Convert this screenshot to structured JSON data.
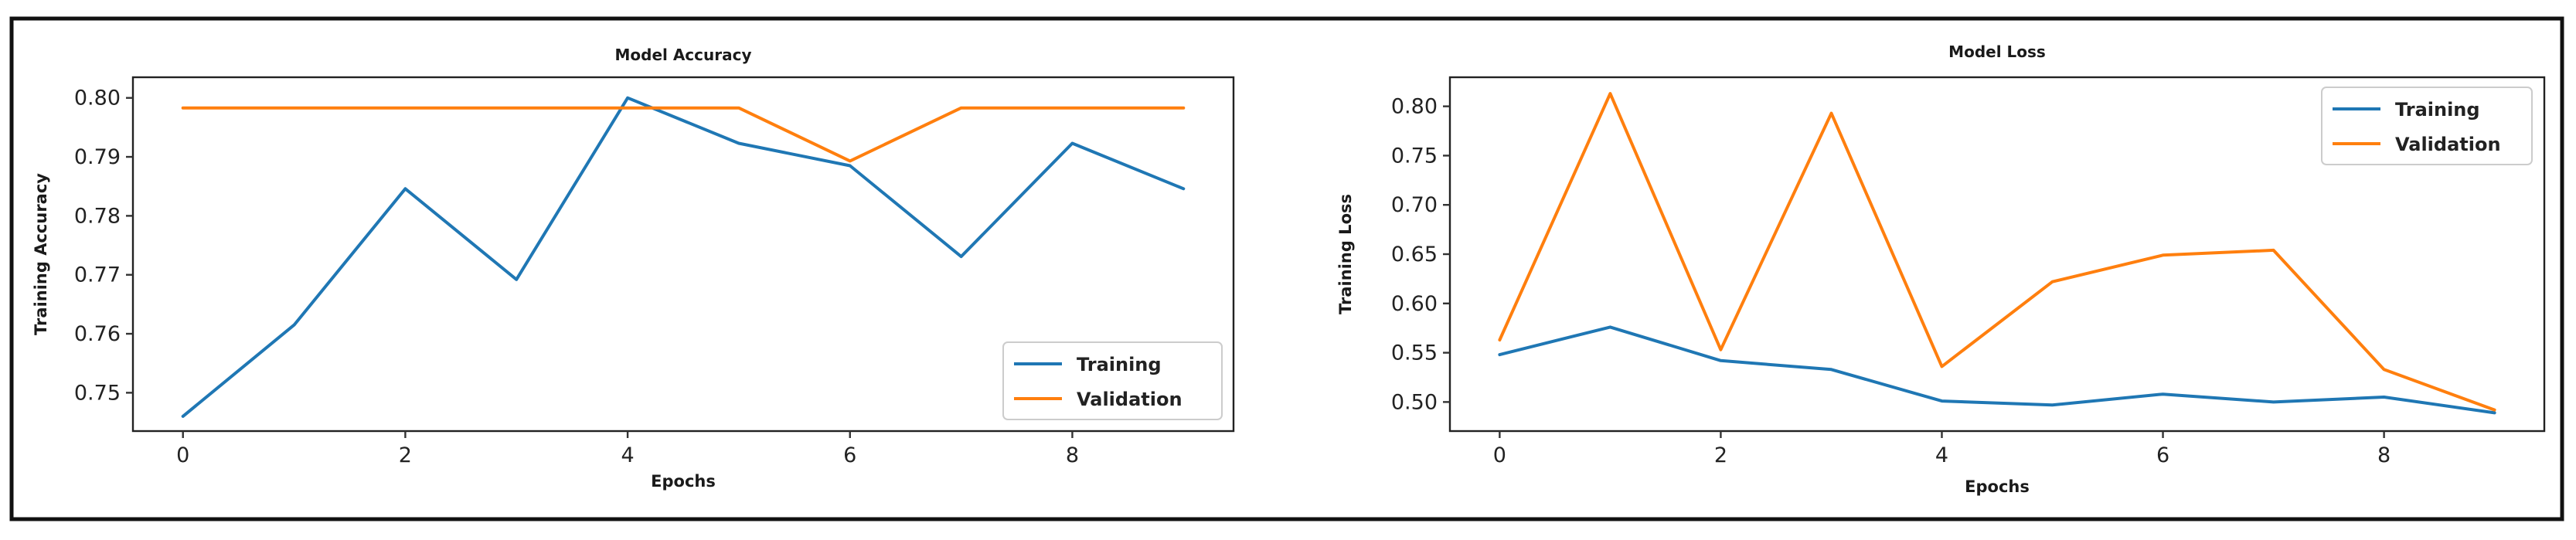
{
  "chart_data": [
    {
      "type": "line",
      "title": "Model Accuracy",
      "xlabel": "Epochs",
      "ylabel": "Training Accuracy",
      "x": [
        0,
        1,
        2,
        3,
        4,
        5,
        6,
        7,
        8,
        9
      ],
      "xticks": [
        0,
        2,
        4,
        6,
        8
      ],
      "xlim": [
        -0.45,
        9.45
      ],
      "yticks": [
        "0.75",
        "0.76",
        "0.77",
        "0.78",
        "0.79",
        "0.80"
      ],
      "ytick_values": [
        0.75,
        0.76,
        0.77,
        0.78,
        0.79,
        0.8
      ],
      "ylim": [
        0.7435,
        0.8035
      ],
      "legend_position": "lower-right",
      "series": [
        {
          "name": "Training",
          "color": "#1f77b4",
          "values": [
            0.746,
            0.7615,
            0.7846,
            0.7692,
            0.8,
            0.7923,
            0.7885,
            0.7731,
            0.7923,
            0.7846
          ]
        },
        {
          "name": "Validation",
          "color": "#ff7f0e",
          "values": [
            0.7983,
            0.7983,
            0.7983,
            0.7983,
            0.7983,
            0.7983,
            0.7893,
            0.7983,
            0.7983,
            0.7983
          ]
        }
      ]
    },
    {
      "type": "line",
      "title": "Model Loss",
      "xlabel": "Epochs",
      "ylabel": "Training Loss",
      "x": [
        0,
        1,
        2,
        3,
        4,
        5,
        6,
        7,
        8,
        9
      ],
      "xticks": [
        0,
        2,
        4,
        6,
        8
      ],
      "xlim": [
        -0.45,
        9.45
      ],
      "yticks": [
        "0.50",
        "0.55",
        "0.60",
        "0.65",
        "0.70",
        "0.75",
        "0.80"
      ],
      "ytick_values": [
        0.5,
        0.55,
        0.6,
        0.65,
        0.7,
        0.75,
        0.8
      ],
      "ylim": [
        0.4705,
        0.8295
      ],
      "legend_position": "upper-right",
      "series": [
        {
          "name": "Training",
          "color": "#1f77b4",
          "values": [
            0.548,
            0.576,
            0.542,
            0.533,
            0.501,
            0.497,
            0.508,
            0.5,
            0.505,
            0.489
          ]
        },
        {
          "name": "Validation",
          "color": "#ff7f0e",
          "values": [
            0.563,
            0.813,
            0.553,
            0.793,
            0.536,
            0.622,
            0.649,
            0.654,
            0.533,
            0.492
          ]
        }
      ]
    }
  ]
}
